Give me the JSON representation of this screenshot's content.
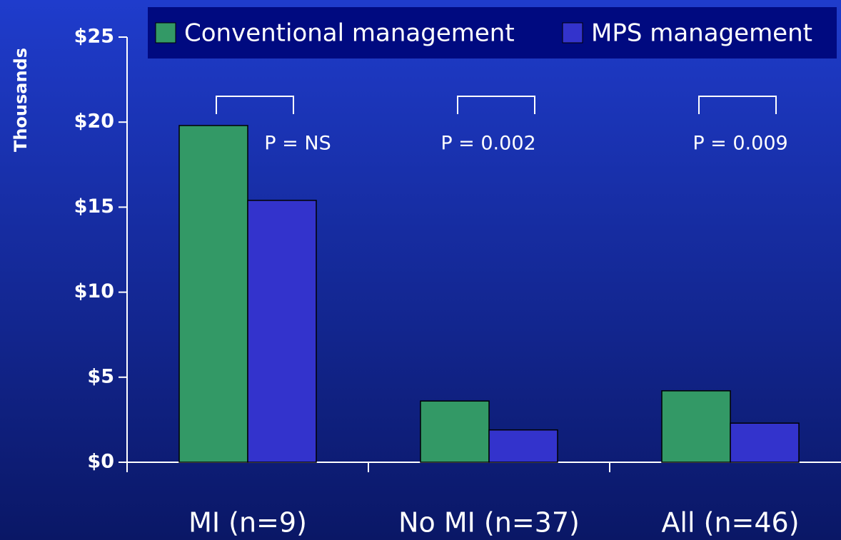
{
  "chart_data": {
    "type": "bar",
    "y_label": "Thousands",
    "categories": [
      "MI (n=9)",
      "No MI (n=37)",
      "All (n=46)"
    ],
    "series": [
      {
        "name": "Conventional management",
        "color": "#339966",
        "values": [
          19.8,
          3.6,
          4.2
        ]
      },
      {
        "name": "MPS management",
        "color": "#3333cc",
        "values": [
          15.4,
          1.9,
          2.3
        ]
      }
    ],
    "ylim": [
      0,
      25
    ],
    "yticks": [
      {
        "value": 0,
        "label": "$0"
      },
      {
        "value": 5,
        "label": "$5"
      },
      {
        "value": 10,
        "label": "$10"
      },
      {
        "value": 15,
        "label": "$15"
      },
      {
        "value": 20,
        "label": "$20"
      },
      {
        "value": 25,
        "label": "$25"
      }
    ],
    "annotations": [
      "P = NS",
      "P = 0.002",
      "P = 0.009"
    ],
    "legend": "top"
  }
}
